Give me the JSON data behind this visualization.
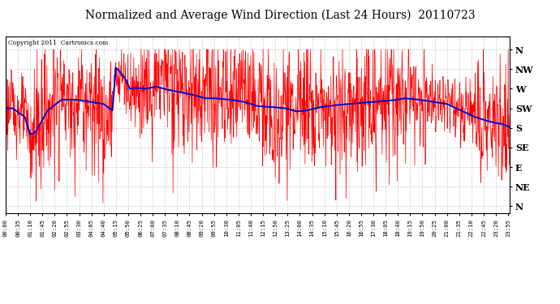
{
  "title": "Normalized and Average Wind Direction (Last 24 Hours)  20110723",
  "copyright": "Copyright 2011  Cartronics.com",
  "background_color": "#ffffff",
  "plot_bg_color": "#ffffff",
  "grid_color": "#cccccc",
  "title_fontsize": 10,
  "ytick_labels": [
    "N",
    "NW",
    "W",
    "SW",
    "S",
    "SE",
    "E",
    "NE",
    "N"
  ],
  "ytick_values": [
    360,
    315,
    270,
    225,
    180,
    135,
    90,
    45,
    0
  ],
  "ylim": [
    -15,
    390
  ],
  "xtick_labels": [
    "00:00",
    "00:35",
    "01:10",
    "01:45",
    "02:20",
    "02:55",
    "03:30",
    "04:05",
    "04:40",
    "05:15",
    "05:50",
    "06:25",
    "07:00",
    "07:35",
    "08:10",
    "08:45",
    "09:20",
    "09:55",
    "10:30",
    "11:05",
    "11:40",
    "12:15",
    "12:50",
    "13:25",
    "14:00",
    "14:35",
    "15:10",
    "15:45",
    "16:20",
    "16:55",
    "17:30",
    "18:05",
    "18:40",
    "19:15",
    "19:50",
    "20:25",
    "21:00",
    "21:35",
    "22:10",
    "22:45",
    "23:20",
    "23:55"
  ],
  "raw_color": "#ff0000",
  "avg_color": "#0000cc",
  "raw_linewidth": 0.5,
  "avg_linewidth": 1.4,
  "avg_breakpoints_x": [
    0,
    20,
    55,
    70,
    85,
    120,
    160,
    200,
    240,
    280,
    305,
    315,
    320,
    340,
    355,
    370,
    400,
    430,
    460,
    500,
    540,
    570,
    600,
    640,
    680,
    720,
    760,
    800,
    830,
    860,
    900,
    940,
    980,
    1020,
    1060,
    1100,
    1140,
    1180,
    1220,
    1260,
    1300,
    1340,
    1380,
    1420,
    1440
  ],
  "avg_breakpoints_y": [
    225,
    225,
    205,
    165,
    170,
    220,
    245,
    245,
    240,
    235,
    220,
    318,
    315,
    295,
    270,
    272,
    270,
    275,
    268,
    262,
    255,
    248,
    248,
    245,
    240,
    230,
    228,
    225,
    218,
    220,
    228,
    232,
    235,
    238,
    240,
    243,
    248,
    245,
    240,
    235,
    220,
    205,
    195,
    188,
    182
  ]
}
